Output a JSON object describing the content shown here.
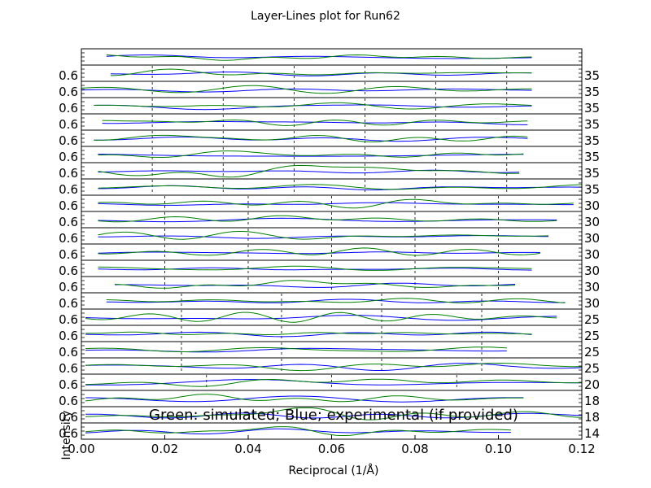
{
  "chart_data": {
    "type": "line",
    "title": "Layer-Lines plot for Run62",
    "xlabel": "Reciprocal (1/Å)",
    "ylabel": "Intensity",
    "annotation": "Green: simulated; Blue; experimental (if provided)",
    "xlim": [
      0.0,
      0.12
    ],
    "x_ticks": [
      "0.00",
      "0.02",
      "0.04",
      "0.06",
      "0.08",
      "0.10",
      "0.12"
    ],
    "grid": "dashed-vertical",
    "series_colors": {
      "simulated": "#008000",
      "experimental": "#0000ff"
    },
    "panels": [
      {
        "left": "",
        "right": "",
        "xmin": 0.006,
        "xmax": 0.108,
        "grid": []
      },
      {
        "left": "0.6",
        "right": "35",
        "xmin": 0.007,
        "xmax": 0.108,
        "grid": [
          0.017,
          0.034,
          0.051,
          0.068,
          0.085,
          0.102
        ]
      },
      {
        "left": "0.6",
        "right": "35",
        "xmin": 0.0,
        "xmax": 0.108,
        "grid": [
          0.017,
          0.034,
          0.051,
          0.068,
          0.085,
          0.102
        ]
      },
      {
        "left": "0.6",
        "right": "35",
        "xmin": 0.003,
        "xmax": 0.108,
        "grid": [
          0.017,
          0.034,
          0.051,
          0.068,
          0.085,
          0.102
        ]
      },
      {
        "left": "0.6",
        "right": "35",
        "xmin": 0.005,
        "xmax": 0.107,
        "grid": [
          0.017,
          0.034,
          0.051,
          0.068,
          0.085,
          0.102
        ]
      },
      {
        "left": "0.6",
        "right": "35",
        "xmin": 0.003,
        "xmax": 0.107,
        "grid": [
          0.017,
          0.034,
          0.051,
          0.068,
          0.085,
          0.102
        ]
      },
      {
        "left": "0.6",
        "right": "35",
        "xmin": 0.004,
        "xmax": 0.106,
        "grid": [
          0.017,
          0.034,
          0.051,
          0.068,
          0.085,
          0.102
        ]
      },
      {
        "left": "0.6",
        "right": "35",
        "xmin": 0.004,
        "xmax": 0.105,
        "grid": [
          0.017,
          0.034,
          0.051,
          0.068,
          0.085,
          0.102
        ]
      },
      {
        "left": "0.6",
        "right": "35",
        "xmin": 0.004,
        "xmax": 0.12,
        "grid": [
          0.017,
          0.034,
          0.051,
          0.068,
          0.085,
          0.102
        ]
      },
      {
        "left": "0.6",
        "right": "30",
        "xmin": 0.004,
        "xmax": 0.118,
        "grid": [
          0.02,
          0.04,
          0.06,
          0.08,
          0.1
        ]
      },
      {
        "left": "0.6",
        "right": "30",
        "xmin": 0.004,
        "xmax": 0.114,
        "grid": [
          0.02,
          0.04,
          0.06,
          0.08,
          0.1
        ]
      },
      {
        "left": "0.6",
        "right": "30",
        "xmin": 0.004,
        "xmax": 0.112,
        "grid": [
          0.02,
          0.04,
          0.06,
          0.08,
          0.1
        ]
      },
      {
        "left": "0.6",
        "right": "30",
        "xmin": 0.004,
        "xmax": 0.11,
        "grid": [
          0.02,
          0.04,
          0.06,
          0.08,
          0.1
        ]
      },
      {
        "left": "0.6",
        "right": "30",
        "xmin": 0.004,
        "xmax": 0.108,
        "grid": [
          0.02,
          0.04,
          0.06,
          0.08,
          0.1
        ]
      },
      {
        "left": "0.6",
        "right": "30",
        "xmin": 0.008,
        "xmax": 0.104,
        "grid": [
          0.02,
          0.04,
          0.06,
          0.08,
          0.1
        ]
      },
      {
        "left": "0.6",
        "right": "30",
        "xmin": 0.006,
        "xmax": 0.116,
        "grid": [
          0.024,
          0.048,
          0.072,
          0.096
        ]
      },
      {
        "left": "0.6",
        "right": "25",
        "xmin": 0.001,
        "xmax": 0.114,
        "grid": [
          0.024,
          0.048,
          0.072,
          0.096
        ]
      },
      {
        "left": "0.6",
        "right": "25",
        "xmin": 0.001,
        "xmax": 0.108,
        "grid": [
          0.024,
          0.048,
          0.072,
          0.096
        ]
      },
      {
        "left": "0.6",
        "right": "25",
        "xmin": 0.001,
        "xmax": 0.102,
        "grid": [
          0.024,
          0.048,
          0.072,
          0.096
        ]
      },
      {
        "left": "0.6",
        "right": "25",
        "xmin": 0.001,
        "xmax": 0.12,
        "grid": [
          0.024,
          0.048,
          0.072,
          0.096
        ]
      },
      {
        "left": "0.6",
        "right": "20",
        "xmin": 0.001,
        "xmax": 0.12,
        "grid": [
          0.03,
          0.06,
          0.09
        ]
      },
      {
        "left": "0.6",
        "right": "18",
        "xmin": 0.001,
        "xmax": 0.106,
        "grid": []
      },
      {
        "left": "0.6",
        "right": "18",
        "xmin": 0.001,
        "xmax": 0.12,
        "grid": []
      },
      {
        "left": "0.6",
        "right": "14",
        "xmin": 0.001,
        "xmax": 0.103,
        "grid": []
      }
    ]
  }
}
